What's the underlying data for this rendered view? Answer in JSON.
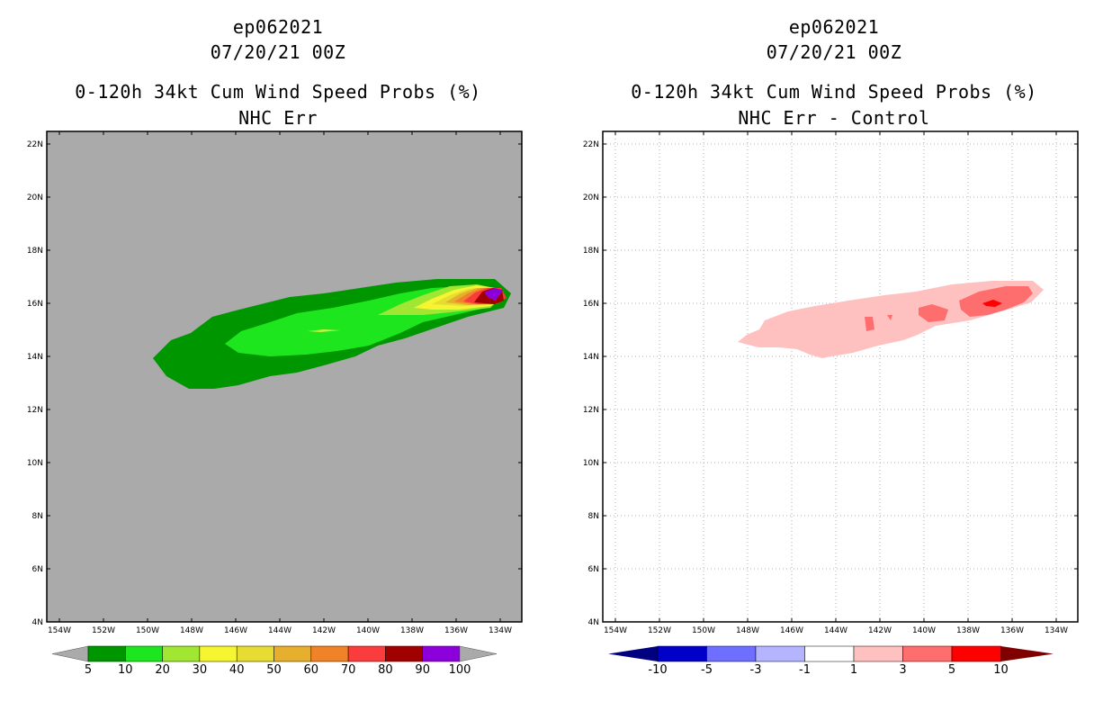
{
  "left": {
    "storm_id": "ep062021",
    "datetime": "07/20/21 00Z",
    "product": "0-120h 34kt Cum Wind Speed Probs (%)",
    "subtitle": "NHC Err",
    "background_color": "#aaaaaa",
    "colorbar": {
      "labels": [
        "5",
        "10",
        "20",
        "30",
        "40",
        "50",
        "60",
        "70",
        "80",
        "90",
        "100"
      ],
      "colors": [
        "#009600",
        "#1ee61e",
        "#a0e632",
        "#f5f532",
        "#e6dc32",
        "#e6af2d",
        "#f08228",
        "#fa3c3c",
        "#a00000",
        "#8c00dc"
      ]
    }
  },
  "right": {
    "storm_id": "ep062021",
    "datetime": "07/20/21 00Z",
    "product": "0-120h 34kt Cum Wind Speed Probs (%)",
    "subtitle": "NHC Err - Control",
    "background_color": "#ffffff",
    "colorbar": {
      "labels": [
        "-10",
        "-5",
        "-3",
        "-1",
        "1",
        "3",
        "5",
        "10"
      ],
      "colors": [
        "#0000c8",
        "#6e6eff",
        "#b4b4ff",
        "#ffffff",
        "#ffc0c0",
        "#ff6e6e",
        "#ff0000"
      ]
    }
  },
  "axes": {
    "lat_labels": [
      "22N",
      "20N",
      "18N",
      "16N",
      "14N",
      "12N",
      "10N",
      "8N",
      "6N",
      "4N"
    ],
    "lon_labels": [
      "154W",
      "152W",
      "150W",
      "148W",
      "146W",
      "144W",
      "142W",
      "140W",
      "138W",
      "136W",
      "134W"
    ]
  }
}
